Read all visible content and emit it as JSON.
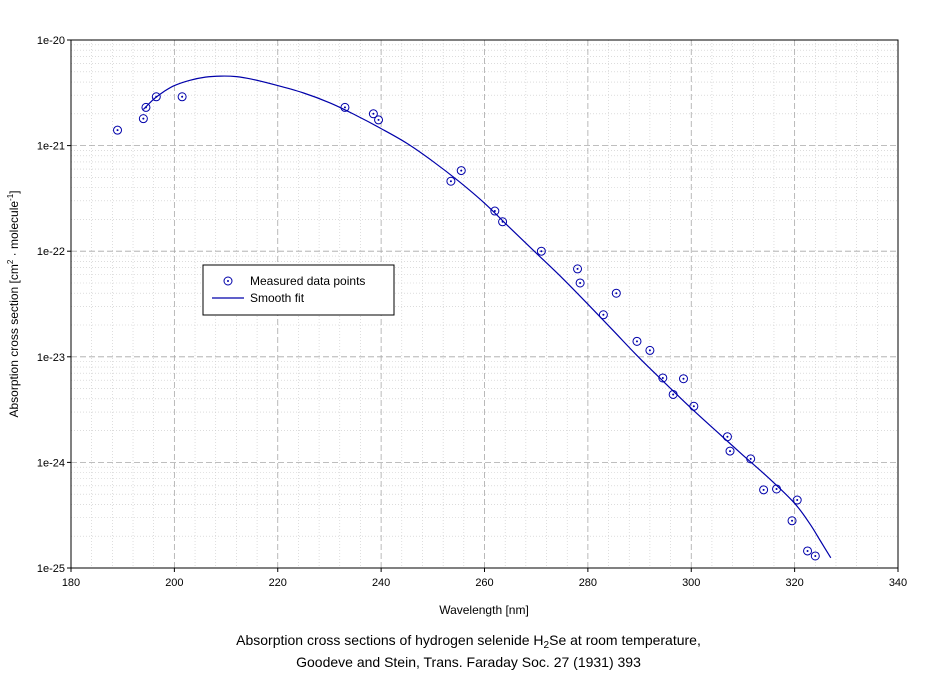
{
  "chart_data": {
    "type": "scatter",
    "xlabel": "Wavelength [nm]",
    "ylabel": {
      "pre": "Absorption cross section [cm",
      "sup1": "2",
      "mid": " · molecule",
      "sup2": "-1",
      "post": "]"
    },
    "xlim": [
      180,
      340
    ],
    "ylim": [
      1e-25,
      1e-20
    ],
    "yscale": "log",
    "grid": true,
    "legend_position": "left-middle",
    "x_ticks": [
      180,
      200,
      220,
      240,
      260,
      280,
      300,
      320,
      340
    ],
    "y_ticks": [
      {
        "value": 1e-20,
        "label": "1e-20"
      },
      {
        "value": 1e-21,
        "label": "1e-21"
      },
      {
        "value": 1e-22,
        "label": "1e-22"
      },
      {
        "value": 1e-23,
        "label": "1e-23"
      },
      {
        "value": 1e-24,
        "label": "1e-24"
      },
      {
        "value": 1e-25,
        "label": "1e-25"
      }
    ],
    "series": [
      {
        "name": "Measured data points",
        "kind": "markers",
        "color": "#0000aa",
        "points": [
          [
            189.0,
            1.4e-21
          ],
          [
            194.0,
            1.8e-21
          ],
          [
            194.5,
            2.3e-21
          ],
          [
            196.5,
            2.9e-21
          ],
          [
            201.5,
            2.9e-21
          ],
          [
            233.0,
            2.3e-21
          ],
          [
            238.5,
            2e-21
          ],
          [
            239.5,
            1.75e-21
          ],
          [
            253.5,
            4.6e-22
          ],
          [
            255.5,
            5.8e-22
          ],
          [
            262.0,
            2.4e-22
          ],
          [
            263.5,
            1.9e-22
          ],
          [
            271.0,
            1e-22
          ],
          [
            278.0,
            6.8e-23
          ],
          [
            278.5,
            5e-23
          ],
          [
            283.0,
            2.5e-23
          ],
          [
            285.5,
            4e-23
          ],
          [
            289.5,
            1.4e-23
          ],
          [
            292.0,
            1.15e-23
          ],
          [
            294.5,
            6.3e-24
          ],
          [
            296.5,
            4.4e-24
          ],
          [
            298.5,
            6.2e-24
          ],
          [
            300.5,
            3.4e-24
          ],
          [
            307.0,
            1.75e-24
          ],
          [
            307.5,
            1.28e-24
          ],
          [
            311.5,
            1.08e-24
          ],
          [
            314.0,
            5.5e-25
          ],
          [
            316.5,
            5.6e-25
          ],
          [
            319.5,
            2.8e-25
          ],
          [
            320.5,
            4.4e-25
          ],
          [
            322.5,
            1.45e-25
          ],
          [
            324.0,
            1.3e-25
          ]
        ]
      },
      {
        "name": "Smooth fit",
        "kind": "line",
        "color": "#0000aa",
        "points": [
          [
            194.0,
            2.2e-21
          ],
          [
            196.0,
            2.75e-21
          ],
          [
            198.0,
            3.25e-21
          ],
          [
            200.0,
            3.7e-21
          ],
          [
            203.0,
            4.15e-21
          ],
          [
            206.0,
            4.45e-21
          ],
          [
            209.0,
            4.55e-21
          ],
          [
            212.0,
            4.5e-21
          ],
          [
            215.0,
            4.25e-21
          ],
          [
            220.0,
            3.7e-21
          ],
          [
            225.0,
            3.15e-21
          ],
          [
            230.0,
            2.55e-21
          ],
          [
            235.0,
            1.95e-21
          ],
          [
            240.0,
            1.45e-21
          ],
          [
            245.0,
            1.05e-21
          ],
          [
            250.0,
            7.1e-22
          ],
          [
            255.0,
            4.6e-22
          ],
          [
            260.0,
            2.85e-22
          ],
          [
            265.0,
            1.65e-22
          ],
          [
            270.0,
            9.6e-23
          ],
          [
            275.0,
            5.6e-23
          ],
          [
            280.0,
            3.15e-23
          ],
          [
            285.0,
            1.75e-23
          ],
          [
            290.0,
            9.7e-24
          ],
          [
            295.0,
            5.6e-24
          ],
          [
            300.0,
            3.25e-24
          ],
          [
            305.0,
            1.95e-24
          ],
          [
            310.0,
            1.17e-24
          ],
          [
            315.0,
            7.1e-25
          ],
          [
            320.0,
            4.1e-25
          ],
          [
            323.0,
            2.6e-25
          ],
          [
            325.0,
            1.8e-25
          ],
          [
            327.0,
            1.25e-25
          ]
        ]
      }
    ]
  },
  "caption": {
    "line1_pre": "Absorption cross sections of hydrogen selenide H",
    "line1_sub": "2",
    "line1_post": "Se at room temperature,",
    "line2": "Goodeve and Stein, Trans. Faraday Soc. 27 (1931) 393"
  }
}
